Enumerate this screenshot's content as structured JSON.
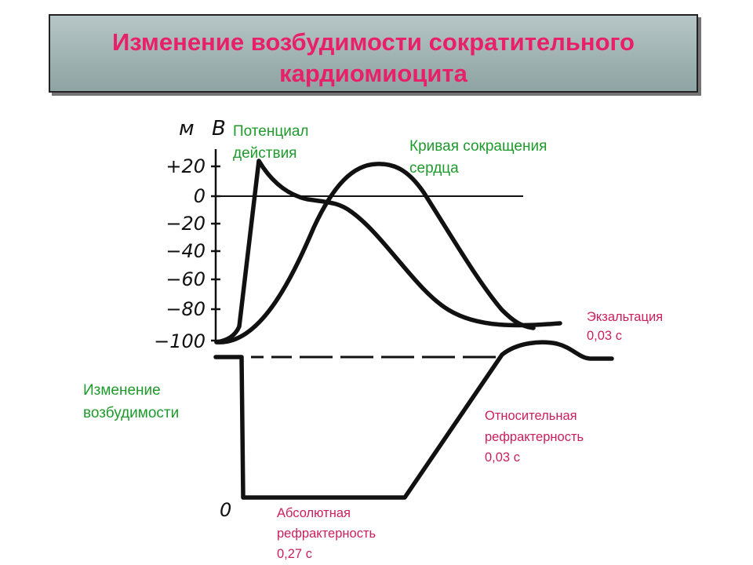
{
  "title": {
    "line1": "Изменение возбудимости сократительного",
    "line2": "кардиомиоцита"
  },
  "axis": {
    "unit_left": "м",
    "unit_right": "В",
    "ticks": [
      "+20",
      "0",
      "−20",
      "−40",
      "−60",
      "−80",
      "−100"
    ],
    "bottom_zero": "0"
  },
  "labels": {
    "action_potential": [
      "Потенциал",
      "действия"
    ],
    "contraction_curve": [
      "Кривая сокращения",
      "сердца"
    ],
    "excitability_change": [
      "Изменение",
      "возбудимости"
    ],
    "exaltation": [
      "Экзальтация",
      "0,03 с"
    ],
    "relative_refractory": [
      "Относительная",
      "рефрактерность",
      "0,03 с"
    ],
    "absolute_refractory": [
      "Абсолютная",
      "рефрактерность",
      "0,27 с"
    ]
  },
  "colors": {
    "title": "#e8206a",
    "green_labels": "#1e9a2c",
    "pink_labels": "#cc1e5c",
    "curves": "#111111"
  }
}
